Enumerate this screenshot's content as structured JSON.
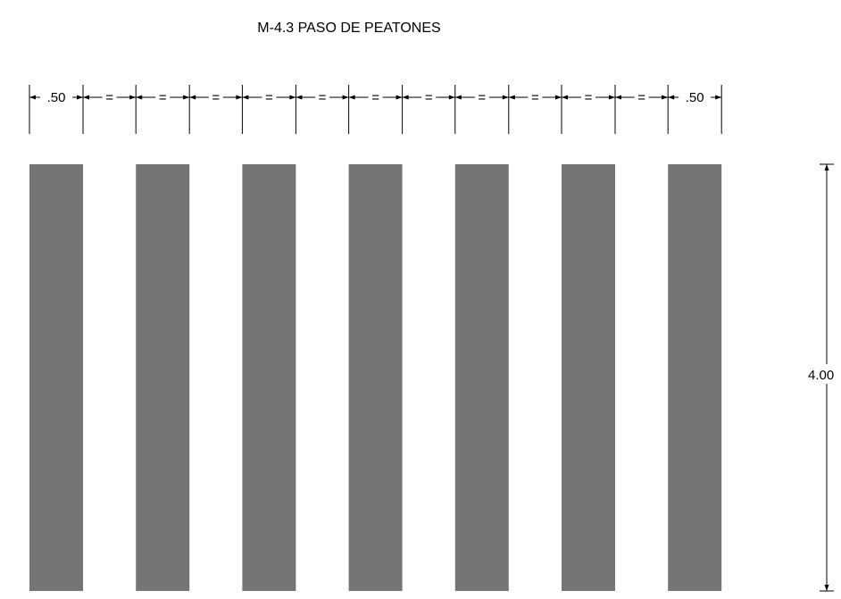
{
  "title": "M-4.3 PASO DE PEATONES",
  "stripes": {
    "count": 7,
    "color": "#757575"
  },
  "dimensions": {
    "edge_label": ".50",
    "spacing_label": "=",
    "height_label": "4.00"
  },
  "line_color": "#000000"
}
